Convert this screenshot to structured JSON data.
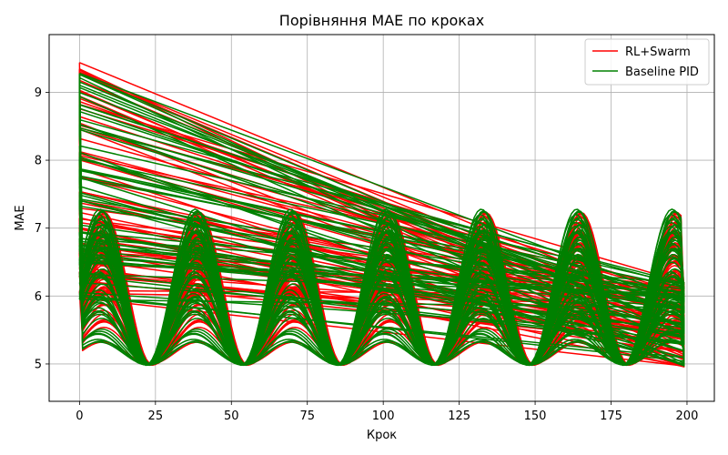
{
  "chart_data": {
    "type": "line",
    "title": "Порівняння MAE по кроках",
    "xlabel": "Крок",
    "ylabel": "MAE",
    "xlim": [
      -10,
      209
    ],
    "ylim": [
      4.45,
      9.85
    ],
    "xticks": [
      0,
      25,
      50,
      75,
      100,
      125,
      150,
      175,
      200
    ],
    "yticks": [
      5,
      6,
      7,
      8,
      9
    ],
    "grid": true,
    "legend": "top-right",
    "series": [
      {
        "name": "RL+Swarm",
        "color": "#ff0000",
        "count": 60,
        "x_range": [
          0,
          199
        ],
        "mean_range": [
          5.0,
          9.1
        ],
        "min_value": 4.87,
        "max_value": 9.46,
        "period": 31.4
      },
      {
        "name": "Baseline PID",
        "color": "#008000",
        "count": 60,
        "x_range": [
          0,
          199
        ],
        "mean_range": [
          4.9,
          9.05
        ],
        "min_value": 4.72,
        "max_value": 9.3,
        "period": 31.4
      }
    ]
  }
}
